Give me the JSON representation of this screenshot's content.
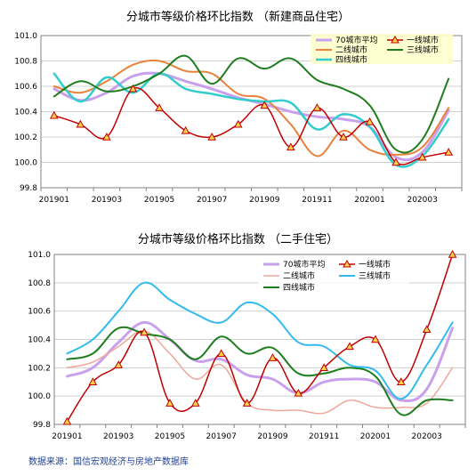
{
  "source_note": "数据来源：国信宏观经济与房地产数据库",
  "chart_data": [
    {
      "type": "line",
      "title": "分城市等级价格环比指数 （新建商品住宅）",
      "x": [
        "201901",
        "201902",
        "201903",
        "201904",
        "201905",
        "201906",
        "201907",
        "201908",
        "201909",
        "201910",
        "201911",
        "201912",
        "202001",
        "202002",
        "202003",
        "202004"
      ],
      "x_tick_labels": [
        "201901",
        "201903",
        "201905",
        "201907",
        "201909",
        "201911",
        "202001",
        "202003"
      ],
      "ylim": [
        99.8,
        101.0
      ],
      "y_ticks": [
        "99.8",
        "100.0",
        "100.2",
        "100.4",
        "100.6",
        "100.8",
        "101.0"
      ],
      "legend_position": "top-right",
      "series": [
        {
          "name": "70城市平均",
          "color": "#c9a0ec",
          "width": 3,
          "values": [
            100.58,
            100.49,
            100.55,
            100.68,
            100.7,
            100.64,
            100.58,
            100.51,
            100.46,
            100.4,
            100.36,
            100.34,
            100.28,
            100.04,
            100.08,
            100.41
          ]
        },
        {
          "name": "一线城市",
          "color": "#c00000",
          "width": 1.5,
          "marker": "triangle",
          "values": [
            100.37,
            100.3,
            100.2,
            100.58,
            100.43,
            100.25,
            100.2,
            100.3,
            100.45,
            100.12,
            100.43,
            100.2,
            100.32,
            100.0,
            100.04,
            100.08
          ]
        },
        {
          "name": "二线城市",
          "color": "#e8823c",
          "width": 2,
          "values": [
            100.6,
            100.55,
            100.64,
            100.77,
            100.8,
            100.72,
            100.7,
            100.54,
            100.5,
            100.3,
            100.05,
            100.25,
            100.1,
            100.06,
            100.12,
            100.43
          ]
        },
        {
          "name": "三线城市",
          "color": "#1e7d1e",
          "width": 2,
          "values": [
            100.52,
            100.64,
            100.56,
            100.6,
            100.7,
            100.84,
            100.62,
            100.82,
            100.74,
            100.82,
            100.65,
            100.58,
            100.45,
            100.1,
            100.18,
            100.66
          ]
        },
        {
          "name": "四线城市",
          "color": "#33cccc",
          "width": 2.5,
          "values": [
            100.7,
            100.48,
            100.67,
            100.55,
            100.7,
            100.58,
            100.54,
            100.5,
            100.48,
            100.47,
            100.26,
            100.38,
            100.28,
            99.98,
            100.05,
            100.34
          ]
        }
      ]
    },
    {
      "type": "line",
      "title": "分城市等级价格环比指数 （二手住宅）",
      "x": [
        "201901",
        "201902",
        "201903",
        "201904",
        "201905",
        "201906",
        "201907",
        "201908",
        "201909",
        "201910",
        "201911",
        "201912",
        "202001",
        "202002",
        "202003",
        "202004"
      ],
      "x_tick_labels": [
        "201901",
        "201903",
        "201905",
        "201907",
        "201909",
        "201911",
        "202001",
        "202003"
      ],
      "ylim": [
        99.8,
        101.0
      ],
      "y_ticks": [
        "99.8",
        "100.0",
        "100.2",
        "100.4",
        "100.6",
        "100.8",
        "101.0"
      ],
      "legend_position": "top-center",
      "series": [
        {
          "name": "70城市平均",
          "color": "#c9a0ec",
          "width": 3,
          "values": [
            100.14,
            100.2,
            100.38,
            100.52,
            100.4,
            100.25,
            100.26,
            100.15,
            100.12,
            100.02,
            100.1,
            100.12,
            100.1,
            99.97,
            100.05,
            100.48
          ]
        },
        {
          "name": "一线城市",
          "color": "#c00000",
          "width": 1.5,
          "marker": "triangle",
          "values": [
            99.82,
            100.1,
            100.22,
            100.45,
            99.95,
            99.95,
            100.3,
            99.95,
            100.27,
            100.02,
            100.2,
            100.35,
            100.4,
            100.1,
            100.47,
            101.0
          ]
        },
        {
          "name": "二线城市",
          "color": "#f0a898",
          "width": 1.5,
          "values": [
            100.2,
            100.24,
            100.35,
            100.46,
            100.3,
            100.12,
            100.22,
            99.95,
            99.9,
            99.9,
            99.88,
            99.97,
            99.92,
            99.92,
            99.95,
            100.2
          ]
        },
        {
          "name": "三线城市",
          "color": "#33bbee",
          "width": 2,
          "values": [
            100.3,
            100.4,
            100.6,
            100.8,
            100.68,
            100.58,
            100.52,
            100.66,
            100.58,
            100.38,
            100.35,
            100.22,
            100.18,
            99.98,
            100.22,
            100.52
          ]
        },
        {
          "name": "四线城市",
          "color": "#1e7d1e",
          "width": 2,
          "values": [
            100.26,
            100.3,
            100.48,
            100.44,
            100.4,
            100.26,
            100.42,
            100.3,
            100.34,
            100.16,
            100.16,
            100.2,
            100.14,
            99.87,
            99.97,
            99.97
          ]
        }
      ]
    }
  ]
}
